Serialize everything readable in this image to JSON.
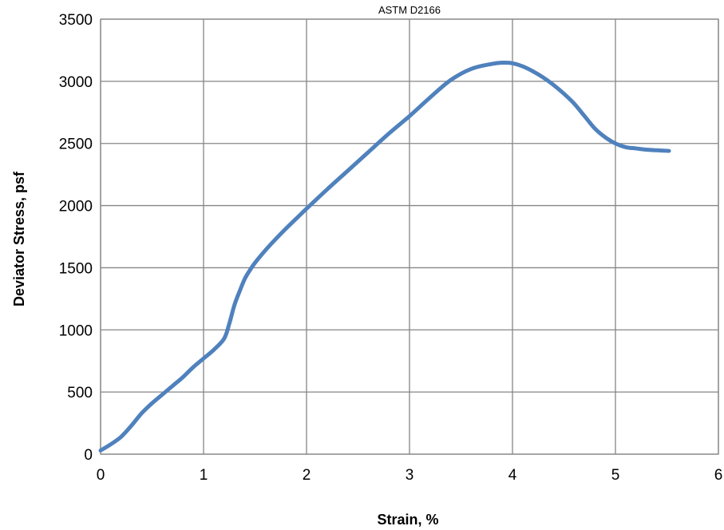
{
  "chart_data": {
    "type": "line",
    "title": "ASTM D2166",
    "xlabel": "Strain, %",
    "ylabel": "Deviator Stress, psf",
    "xlim": [
      0,
      6
    ],
    "ylim": [
      0,
      3500
    ],
    "xticks": [
      0,
      1,
      2,
      3,
      4,
      5,
      6
    ],
    "yticks": [
      0,
      500,
      1000,
      1500,
      2000,
      2500,
      3000,
      3500
    ],
    "grid": true,
    "legend": "none",
    "series": [
      {
        "color": "#4f81bd",
        "x": [
          0.0,
          0.1,
          0.2,
          0.3,
          0.4,
          0.5,
          0.6,
          0.7,
          0.8,
          0.9,
          1.0,
          1.1,
          1.2,
          1.25,
          1.3,
          1.35,
          1.4,
          1.45,
          1.5,
          1.6,
          1.7,
          1.8,
          1.9,
          2.0,
          2.2,
          2.4,
          2.6,
          2.8,
          3.0,
          3.2,
          3.4,
          3.6,
          3.8,
          3.9,
          4.0,
          4.1,
          4.2,
          4.3,
          4.4,
          4.5,
          4.6,
          4.7,
          4.8,
          4.9,
          5.0,
          5.1,
          5.2,
          5.3,
          5.4,
          5.52
        ],
        "y": [
          30,
          80,
          140,
          230,
          330,
          410,
          480,
          550,
          620,
          700,
          770,
          840,
          930,
          1050,
          1200,
          1310,
          1410,
          1480,
          1540,
          1640,
          1730,
          1815,
          1895,
          1975,
          2130,
          2280,
          2430,
          2580,
          2720,
          2870,
          3010,
          3100,
          3140,
          3150,
          3145,
          3120,
          3080,
          3030,
          2970,
          2900,
          2820,
          2720,
          2620,
          2550,
          2500,
          2470,
          2460,
          2450,
          2445,
          2440
        ]
      }
    ]
  }
}
